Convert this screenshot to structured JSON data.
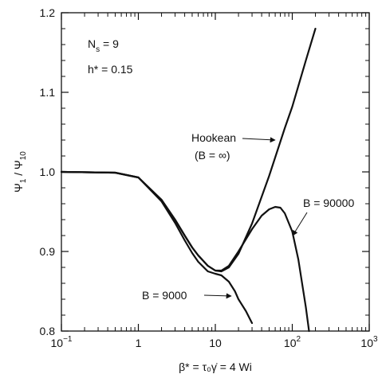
{
  "chart_data": {
    "type": "line",
    "xscale": "log",
    "xlim": [
      0.1,
      1000
    ],
    "ylim": [
      0.8,
      1.2
    ],
    "grid": false,
    "xlabel": "β* = τ₀γ̇ = 4 Wi",
    "ylabel": "Ψ₁/Ψ₁₀",
    "parameters": [
      "N_s = 9",
      "h* = 0.15"
    ],
    "x_ticks": [
      {
        "value": 0.1,
        "base": "10",
        "exp": "−1"
      },
      {
        "value": 1,
        "base": "1",
        "exp": ""
      },
      {
        "value": 10,
        "base": "10",
        "exp": ""
      },
      {
        "value": 100,
        "base": "10",
        "exp": "2"
      },
      {
        "value": 1000,
        "base": "10",
        "exp": "3"
      }
    ],
    "y_ticks": [
      "0.8",
      "0.9",
      "1.0",
      "1.1",
      "1.2"
    ],
    "series": [
      {
        "name": "Hookean (B = ∞)",
        "x": [
          0.1,
          0.5,
          1,
          2,
          3,
          4,
          5,
          6,
          8,
          10,
          12,
          15,
          20,
          30,
          50,
          80,
          100,
          150,
          200
        ],
        "y": [
          1.0,
          0.999,
          0.993,
          0.965,
          0.94,
          0.92,
          0.905,
          0.895,
          0.882,
          0.876,
          0.875,
          0.88,
          0.897,
          0.935,
          0.995,
          1.055,
          1.082,
          1.14,
          1.18
        ]
      },
      {
        "name": "B = 90000",
        "x": [
          0.1,
          0.5,
          1,
          2,
          3,
          4,
          5,
          6,
          8,
          10,
          12,
          15,
          20,
          30,
          40,
          50,
          60,
          70,
          80,
          100,
          120,
          150,
          165
        ],
        "y": [
          1.0,
          0.999,
          0.993,
          0.965,
          0.94,
          0.92,
          0.905,
          0.895,
          0.882,
          0.876,
          0.876,
          0.882,
          0.9,
          0.928,
          0.945,
          0.953,
          0.956,
          0.955,
          0.948,
          0.925,
          0.89,
          0.83,
          0.8
        ]
      },
      {
        "name": "B = 9000",
        "x": [
          0.1,
          0.5,
          1,
          2,
          3,
          4,
          5,
          6,
          8,
          10,
          12,
          15,
          18,
          20,
          25,
          30
        ],
        "y": [
          1.0,
          0.999,
          0.993,
          0.963,
          0.936,
          0.914,
          0.898,
          0.887,
          0.875,
          0.872,
          0.87,
          0.862,
          0.85,
          0.84,
          0.825,
          0.81
        ]
      }
    ],
    "annotations": [
      {
        "text": "Hookean",
        "sub": "(B = ∞)"
      },
      {
        "text": "B = 90000"
      },
      {
        "text": "B = 9000"
      }
    ]
  }
}
